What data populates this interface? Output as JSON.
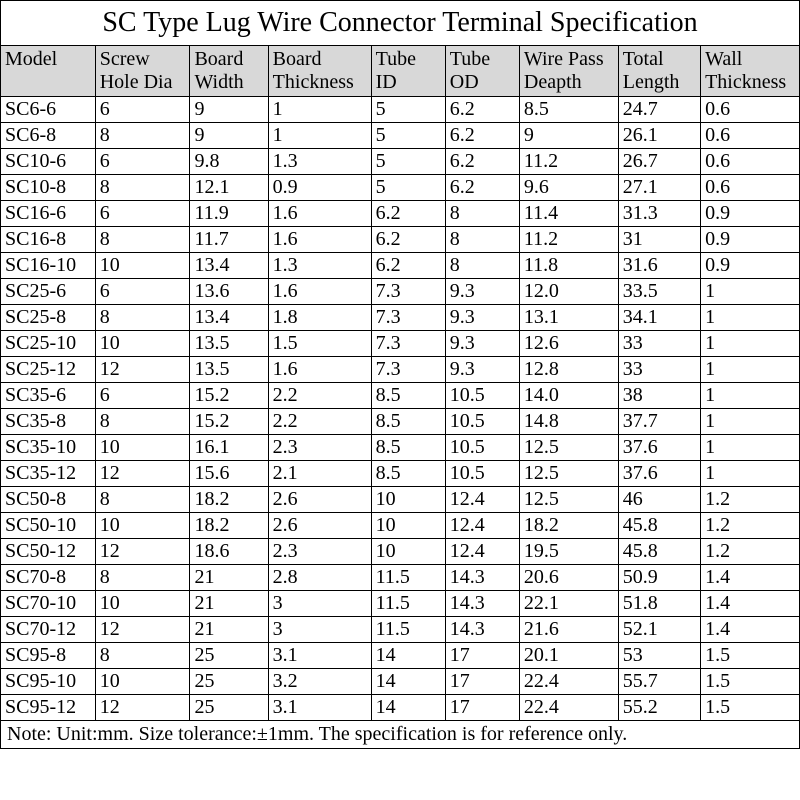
{
  "title": "SC Type Lug Wire Connector Terminal Specification",
  "title_fontsize": 28,
  "cell_fontsize": 20,
  "header_fontsize": 20,
  "note_fontsize": 20,
  "colors": {
    "header_bg": "#d8d8d8",
    "background": "#ffffff",
    "border": "#000000",
    "text": "#000000"
  },
  "columns": [
    {
      "key": "model",
      "label_l1": "Model",
      "label_l2": "",
      "width_pct": 11.5
    },
    {
      "key": "screw",
      "label_l1": "Screw",
      "label_l2": "Hole Dia",
      "width_pct": 11.5
    },
    {
      "key": "bwidth",
      "label_l1": "Board",
      "label_l2": "Width",
      "width_pct": 9.5
    },
    {
      "key": "bthick",
      "label_l1": "Board",
      "label_l2": "Thickness",
      "width_pct": 12.5
    },
    {
      "key": "tid",
      "label_l1": "Tube",
      "label_l2": "ID",
      "width_pct": 9
    },
    {
      "key": "tod",
      "label_l1": "Tube",
      "label_l2": "OD",
      "width_pct": 9
    },
    {
      "key": "wpass",
      "label_l1": "Wire Pass",
      "label_l2": "Deapth",
      "width_pct": 12
    },
    {
      "key": "tlen",
      "label_l1": "Total",
      "label_l2": "Length",
      "width_pct": 10
    },
    {
      "key": "wall",
      "label_l1": "Wall",
      "label_l2": "Thickness",
      "width_pct": 12
    }
  ],
  "rows": [
    [
      "SC6-6",
      "6",
      "9",
      "1",
      "5",
      "6.2",
      "8.5",
      "24.7",
      "0.6"
    ],
    [
      "SC6-8",
      "8",
      "9",
      "1",
      "5",
      "6.2",
      "9",
      "26.1",
      "0.6"
    ],
    [
      "SC10-6",
      "6",
      "9.8",
      "1.3",
      "5",
      "6.2",
      "11.2",
      "26.7",
      "0.6"
    ],
    [
      "SC10-8",
      "8",
      "12.1",
      "0.9",
      "5",
      "6.2",
      "9.6",
      "27.1",
      "0.6"
    ],
    [
      "SC16-6",
      "6",
      "11.9",
      "1.6",
      "6.2",
      "8",
      "11.4",
      "31.3",
      "0.9"
    ],
    [
      "SC16-8",
      "8",
      "11.7",
      "1.6",
      "6.2",
      "8",
      "11.2",
      "31",
      "0.9"
    ],
    [
      "SC16-10",
      "10",
      "13.4",
      "1.3",
      "6.2",
      "8",
      "11.8",
      "31.6",
      "0.9"
    ],
    [
      "SC25-6",
      "6",
      "13.6",
      "1.6",
      "7.3",
      "9.3",
      "12.0",
      "33.5",
      "1"
    ],
    [
      "SC25-8",
      "8",
      "13.4",
      "1.8",
      "7.3",
      "9.3",
      "13.1",
      "34.1",
      "1"
    ],
    [
      "SC25-10",
      "10",
      "13.5",
      "1.5",
      "7.3",
      "9.3",
      "12.6",
      "33",
      "1"
    ],
    [
      "SC25-12",
      "12",
      "13.5",
      "1.6",
      "7.3",
      "9.3",
      "12.8",
      "33",
      "1"
    ],
    [
      "SC35-6",
      "6",
      "15.2",
      "2.2",
      "8.5",
      "10.5",
      "14.0",
      "38",
      "1"
    ],
    [
      "SC35-8",
      "8",
      "15.2",
      "2.2",
      "8.5",
      "10.5",
      "14.8",
      "37.7",
      "1"
    ],
    [
      "SC35-10",
      "10",
      "16.1",
      "2.3",
      "8.5",
      "10.5",
      "12.5",
      "37.6",
      "1"
    ],
    [
      "SC35-12",
      "12",
      "15.6",
      "2.1",
      "8.5",
      "10.5",
      "12.5",
      "37.6",
      "1"
    ],
    [
      "SC50-8",
      "8",
      "18.2",
      "2.6",
      "10",
      "12.4",
      "12.5",
      "46",
      "1.2"
    ],
    [
      "SC50-10",
      "10",
      "18.2",
      "2.6",
      "10",
      "12.4",
      "18.2",
      "45.8",
      "1.2"
    ],
    [
      "SC50-12",
      "12",
      "18.6",
      "2.3",
      "10",
      "12.4",
      "19.5",
      "45.8",
      "1.2"
    ],
    [
      "SC70-8",
      "8",
      "21",
      "2.8",
      "11.5",
      "14.3",
      "20.6",
      "50.9",
      "1.4"
    ],
    [
      "SC70-10",
      "10",
      "21",
      "3",
      "11.5",
      "14.3",
      "22.1",
      "51.8",
      "1.4"
    ],
    [
      "SC70-12",
      "12",
      "21",
      "3",
      "11.5",
      "14.3",
      "21.6",
      "52.1",
      "1.4"
    ],
    [
      "SC95-8",
      "8",
      "25",
      "3.1",
      "14",
      "17",
      "20.1",
      "53",
      "1.5"
    ],
    [
      "SC95-10",
      "10",
      "25",
      "3.2",
      "14",
      "17",
      "22.4",
      "55.7",
      "1.5"
    ],
    [
      "SC95-12",
      "12",
      "25",
      "3.1",
      "14",
      "17",
      "22.4",
      "55.2",
      "1.5"
    ]
  ],
  "note": "Note: Unit:mm. Size tolerance:±1mm. The specification is for reference only."
}
